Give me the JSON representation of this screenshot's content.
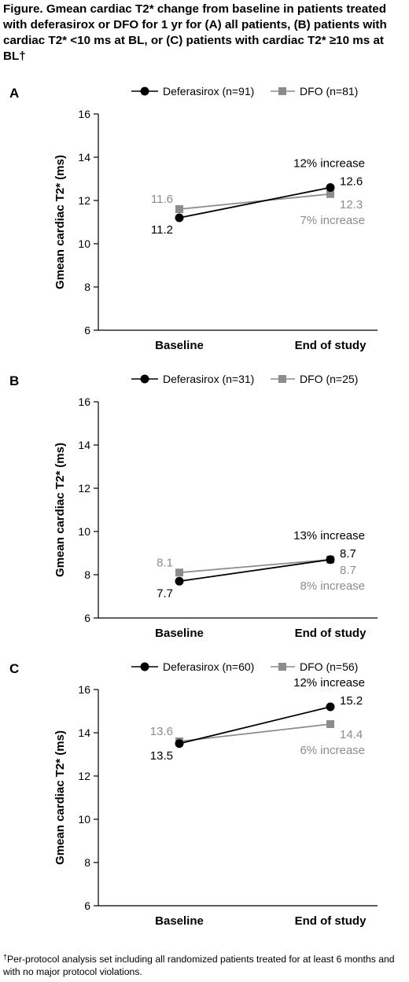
{
  "figure": {
    "title": "Figure. Gmean cardiac T2* change from baseline in patients treated with deferasirox or DFO for 1 yr  for (A) all patients, (B) patients with cardiac T2* <10 ms at BL, or (C) patients with cardiac T2* ≥10 ms at BL†",
    "footnote_mark": "†",
    "footnote": "Per-protocol analysis set including all randomized patients treated for at least 6 months and with no major protocol violations."
  },
  "colors": {
    "deferasirox": "#000000",
    "dfo": "#8c8c8c",
    "axis": "#000000"
  },
  "chart_data": [
    {
      "type": "line",
      "panel_label": "A",
      "categories": [
        "Baseline",
        "End of study"
      ],
      "ylabel": "Gmean cardiac T2* (ms)",
      "ylim": [
        6,
        16
      ],
      "yticks": [
        6,
        8,
        10,
        12,
        14,
        16
      ],
      "legend_position": "top",
      "series": [
        {
          "name": "Deferasirox (n=91)",
          "key": "deferasirox",
          "marker": "circle",
          "values": [
            11.2,
            12.6
          ],
          "labels": [
            "11.2",
            "12.6"
          ],
          "annotation": "12% increase"
        },
        {
          "name": "DFO (n=81)",
          "key": "dfo",
          "marker": "square",
          "values": [
            11.6,
            12.3
          ],
          "labels": [
            "11.6",
            "12.3"
          ],
          "annotation": "7% increase"
        }
      ]
    },
    {
      "type": "line",
      "panel_label": "B",
      "categories": [
        "Baseline",
        "End of study"
      ],
      "ylabel": "Gmean cardiac T2* (ms)",
      "ylim": [
        6,
        16
      ],
      "yticks": [
        6,
        8,
        10,
        12,
        14,
        16
      ],
      "legend_position": "top",
      "series": [
        {
          "name": "Deferasirox (n=31)",
          "key": "deferasirox",
          "marker": "circle",
          "values": [
            7.7,
            8.7
          ],
          "labels": [
            "7.7",
            "8.7"
          ],
          "annotation": "13% increase"
        },
        {
          "name": "DFO (n=25)",
          "key": "dfo",
          "marker": "square",
          "values": [
            8.1,
            8.7
          ],
          "labels": [
            "8.1",
            "8.7"
          ],
          "annotation": "8% increase"
        }
      ]
    },
    {
      "type": "line",
      "panel_label": "C",
      "categories": [
        "Baseline",
        "End of study"
      ],
      "ylabel": "Gmean cardiac T2* (ms)",
      "ylim": [
        6,
        16
      ],
      "yticks": [
        6,
        8,
        10,
        12,
        14,
        16
      ],
      "legend_position": "top",
      "series": [
        {
          "name": "Deferasirox (n=60)",
          "key": "deferasirox",
          "marker": "circle",
          "values": [
            13.5,
            15.2
          ],
          "labels": [
            "13.5",
            "15.2"
          ],
          "annotation": "12% increase"
        },
        {
          "name": "DFO (n=56)",
          "key": "dfo",
          "marker": "square",
          "values": [
            13.6,
            14.4
          ],
          "labels": [
            "13.6",
            "14.4"
          ],
          "annotation": "6% increase"
        }
      ]
    }
  ]
}
